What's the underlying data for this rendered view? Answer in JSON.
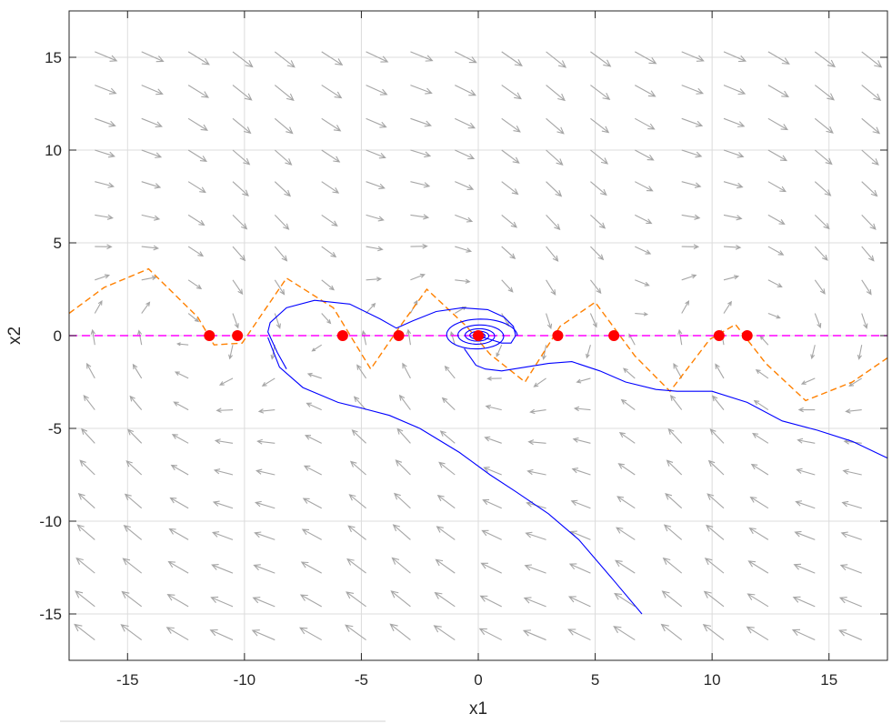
{
  "chart_data": {
    "type": "scatter",
    "title": "",
    "xlabel": "x1",
    "ylabel": "x2",
    "xlim": [
      -17.5,
      17.5
    ],
    "ylim": [
      -17.5,
      17.5
    ],
    "xticks": [
      -15,
      -10,
      -5,
      0,
      5,
      10,
      15
    ],
    "yticks": [
      -15,
      -10,
      -5,
      0,
      5,
      10,
      15
    ],
    "xtick_labels": [
      "-15",
      "-10",
      "-5",
      "0",
      "5",
      "10",
      "15"
    ],
    "ytick_labels": [
      "-15",
      "-10",
      "-5",
      "0",
      "5",
      "10",
      "15"
    ],
    "grid": true,
    "colors": {
      "quiver": "#a6a6a6",
      "trajectory": "#0000ff",
      "x1_nullcline": "#ff00ff",
      "x2_nullcline": "#ff8000",
      "equilibrium": "#ff0000"
    },
    "vector_field": {
      "x1_grid": [
        -16.4,
        -14.4,
        -12.4,
        -10.5,
        -8.7,
        -6.7,
        -4.8,
        -2.9,
        -1.0,
        1.0,
        2.9,
        4.8,
        6.7,
        8.7,
        10.5,
        12.4,
        14.4,
        16.4
      ],
      "x2_grid": [
        15.3,
        13.5,
        11.7,
        10.0,
        8.3,
        6.5,
        4.8,
        3.0,
        1.2,
        -0.5,
        -2.3,
        -4.0,
        -5.8,
        -7.5,
        -9.3,
        -11.0,
        -12.8,
        -14.6,
        -16.4
      ],
      "dx1": "x2",
      "dx2": "-0.6*x2 - 3*sin(x1/2)"
    },
    "x2_nullcline": {
      "x": [
        -17.5,
        -16.0,
        -14.1,
        -12.0,
        -11.3,
        -10.1,
        -8.2,
        -6.2,
        -4.6,
        -3.4,
        -2.2,
        -0.5,
        0.5,
        2.0,
        3.5,
        5.0,
        6.7,
        8.2,
        9.9,
        11.0,
        12.3,
        14.0,
        16.0,
        17.5
      ],
      "y": [
        1.2,
        2.6,
        3.6,
        1.0,
        -0.5,
        -0.4,
        3.1,
        1.5,
        -1.8,
        0.4,
        2.5,
        0.5,
        -1.0,
        -2.5,
        0.5,
        1.8,
        -1.1,
        -3.0,
        -0.2,
        0.6,
        -1.5,
        -3.5,
        -2.5,
        -1.2
      ]
    },
    "x1_nullcline": {
      "x": [
        -17.5,
        17.5
      ],
      "y": [
        0,
        0
      ]
    },
    "equilibria": {
      "x": [
        -11.5,
        -10.3,
        -5.8,
        -3.4,
        0.0,
        3.4,
        5.8,
        10.3,
        11.5
      ],
      "y": [
        0,
        0,
        0,
        0,
        0,
        0,
        0,
        0,
        0
      ]
    },
    "trajectories": [
      {
        "x": [
          -8.2,
          -8.6,
          -9.0,
          -8.9,
          -8.2,
          -7.0,
          -5.5,
          -4.2,
          -3.5,
          -2.8,
          -1.8,
          -0.7,
          0.4,
          1.1,
          1.5,
          1.6,
          1.4,
          1.0,
          0.5,
          0.2,
          0.0
        ],
        "y": [
          -1.8,
          -0.9,
          0.2,
          0.7,
          1.5,
          1.9,
          1.7,
          0.9,
          0.4,
          0.8,
          1.3,
          1.5,
          1.4,
          1.0,
          0.5,
          0.0,
          -0.4,
          -0.4,
          -0.2,
          -0.1,
          0.0
        ]
      },
      {
        "x": [
          -9.0,
          -8.5,
          -7.5,
          -6.0,
          -5.0,
          -3.8,
          -2.5,
          -0.8,
          0.5,
          1.6,
          3.0,
          4.3,
          5.8,
          7.0
        ],
        "y": [
          -0.1,
          -1.7,
          -2.8,
          -3.6,
          -3.9,
          -4.3,
          -5.0,
          -6.3,
          -7.5,
          -8.4,
          -9.6,
          -11.0,
          -13.2,
          -15.0
        ]
      },
      {
        "x": [
          -0.6,
          -0.1,
          0.3,
          1.0,
          2.0,
          3.0,
          4.0,
          5.2,
          6.3,
          7.6,
          8.5,
          10.0,
          11.5,
          13.0,
          14.5,
          16.0,
          17.5
        ],
        "y": [
          -0.7,
          -1.6,
          -1.8,
          -1.9,
          -1.7,
          -1.5,
          -1.4,
          -1.9,
          -2.5,
          -2.9,
          -3.0,
          -3.0,
          -3.6,
          -4.6,
          -5.1,
          -5.7,
          -6.6
        ]
      }
    ],
    "spiral": {
      "center": [
        0,
        0
      ],
      "r0": 1.6,
      "turns": 6
    }
  }
}
